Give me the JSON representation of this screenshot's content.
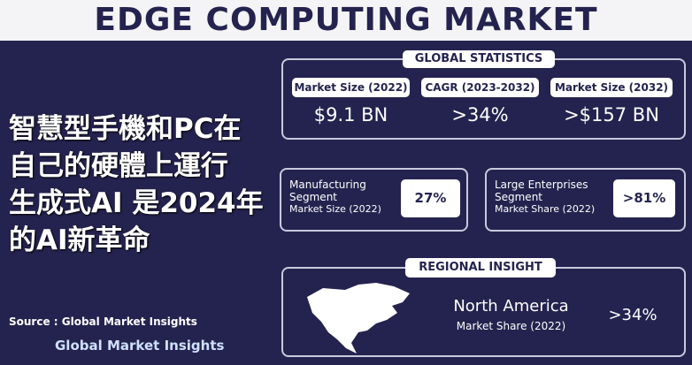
{
  "header": {
    "title": "EDGE COMPUTING MARKET"
  },
  "headline": [
    "智慧型手機和PC在",
    "自己的硬體上運行",
    "生成式AI 是2024年",
    "的AI新革命"
  ],
  "global_statistics": {
    "title": "GLOBAL STATISTICS",
    "items": [
      {
        "label": "Market Size (2022)",
        "value": "$9.1 BN"
      },
      {
        "label": "CAGR (2023-2032)",
        "value": ">34%"
      },
      {
        "label": "Market Size (2032)",
        "value": ">$157 BN"
      }
    ]
  },
  "segments": [
    {
      "name_lines": [
        "Manufacturing",
        "Segment"
      ],
      "metric": "Market Size (2022)",
      "value": "27%"
    },
    {
      "name_lines": [
        "Large Enterprises",
        "Segment"
      ],
      "metric": "Market Share (2022)",
      "value": ">81%"
    }
  ],
  "regional": {
    "title": "REGIONAL INSIGHT",
    "region": "North America",
    "metric": "Market Share (2022)",
    "value": ">34%"
  },
  "source": "Source : Global Market Insights",
  "logo": "Global Market Insights"
}
